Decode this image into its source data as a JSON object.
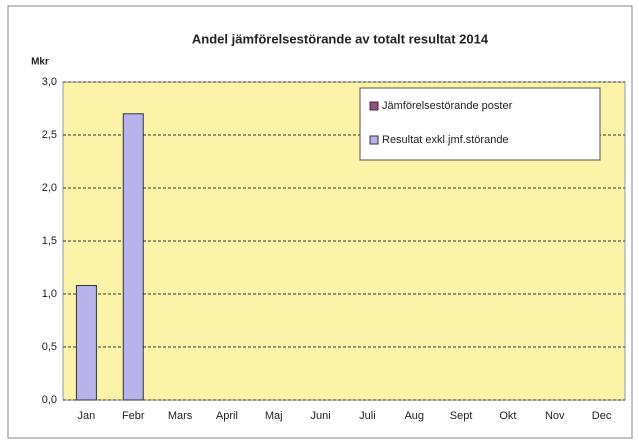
{
  "chart_data": {
    "type": "bar",
    "stacked": true,
    "title": "Andel jämförelsestörande av totalt resultat 2014",
    "ylabel": "Mkr",
    "categories": [
      "Jan",
      "Febr",
      "Mars",
      "April",
      "Maj",
      "Juni",
      "Juli",
      "Aug",
      "Sept",
      "Okt",
      "Nov",
      "Dec"
    ],
    "series": [
      {
        "name": "Jämförelsestörande poster",
        "color": "#9c4a86",
        "values": [
          null,
          null,
          null,
          null,
          null,
          null,
          null,
          null,
          null,
          null,
          null,
          null
        ]
      },
      {
        "name": "Resultat exkl jmf.störande",
        "color": "#b9b3ec",
        "values": [
          1.08,
          2.7,
          null,
          null,
          null,
          null,
          null,
          null,
          null,
          null,
          null,
          null
        ]
      }
    ],
    "ylim": [
      0,
      3
    ],
    "yticks": [
      {
        "value": 0,
        "label": "0,0"
      },
      {
        "value": 0.5,
        "label": "0,5"
      },
      {
        "value": 1,
        "label": "1,0"
      },
      {
        "value": 1.5,
        "label": "1,5"
      },
      {
        "value": 2,
        "label": "2,0"
      },
      {
        "value": 2.5,
        "label": "2,5"
      },
      {
        "value": 3,
        "label": "3,0"
      }
    ],
    "grid": true,
    "legend": "top-right"
  }
}
